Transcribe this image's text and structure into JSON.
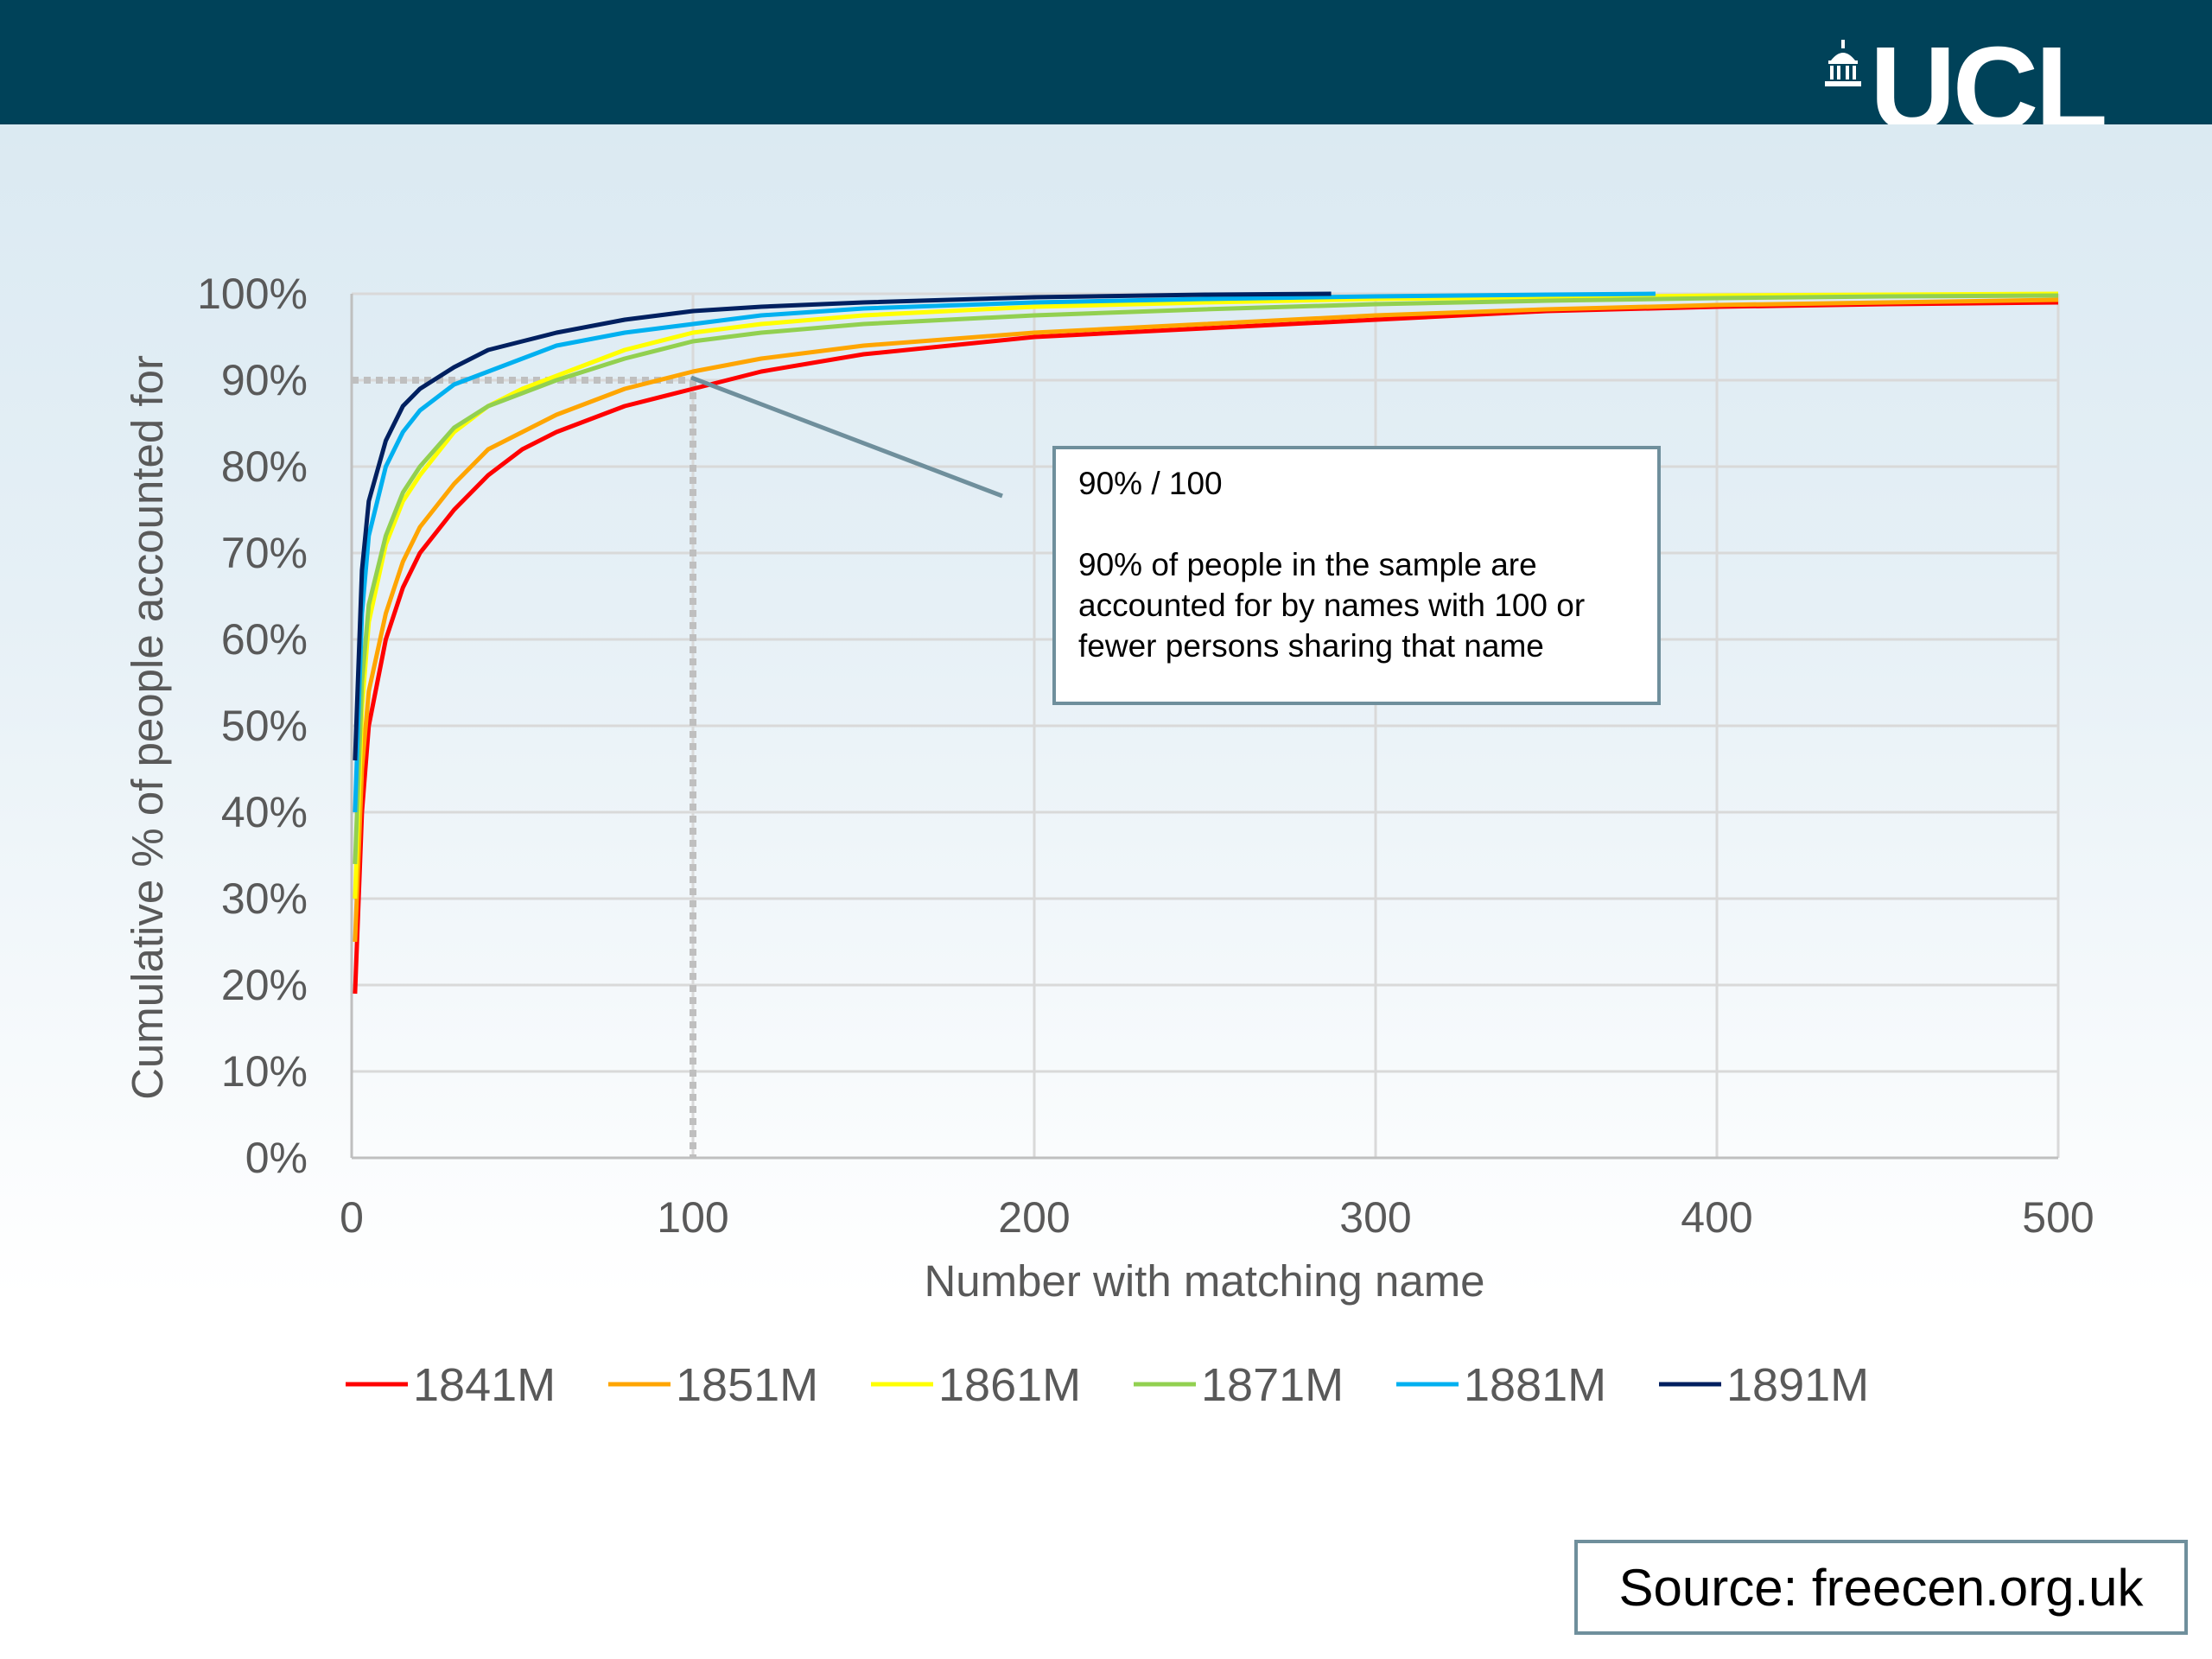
{
  "header": {
    "logo_text": "UCL",
    "background_color": "#004259"
  },
  "annotation": {
    "title": "90% / 100",
    "body": "90% of people in the sample are accounted for by names with 100 or fewer persons sharing that name"
  },
  "source": {
    "text": "Source: freecen.org.uk"
  },
  "chart_data": {
    "type": "line",
    "title": "",
    "xlabel": "Number with matching name",
    "ylabel": "Cumulative % of people accounted for",
    "xlim": [
      0,
      500
    ],
    "ylim": [
      0,
      1
    ],
    "x_ticks": [
      0,
      100,
      200,
      300,
      400,
      500
    ],
    "x_tick_labels": [
      "0",
      "100",
      "200",
      "300",
      "400",
      "500"
    ],
    "y_ticks": [
      0,
      0.1,
      0.2,
      0.3,
      0.4,
      0.5,
      0.6,
      0.7,
      0.8,
      0.9,
      1.0
    ],
    "y_tick_labels": [
      "0%",
      "10%",
      "20%",
      "30%",
      "40%",
      "50%",
      "60%",
      "70%",
      "80%",
      "90%",
      "100%"
    ],
    "grid": true,
    "legend_position": "bottom",
    "reference_lines": [
      {
        "x": 100,
        "y": 0.9,
        "style": "dotted"
      }
    ],
    "series": [
      {
        "name": "1841M",
        "color": "#ff0000",
        "x": [
          1,
          3,
          5,
          10,
          15,
          20,
          30,
          40,
          50,
          60,
          80,
          100,
          120,
          150,
          200,
          250,
          300,
          350,
          400,
          450,
          500
        ],
        "y": [
          0.19,
          0.4,
          0.5,
          0.6,
          0.66,
          0.7,
          0.75,
          0.79,
          0.82,
          0.84,
          0.87,
          0.89,
          0.91,
          0.93,
          0.95,
          0.96,
          0.97,
          0.98,
          0.985,
          0.988,
          0.99
        ]
      },
      {
        "name": "1851M",
        "color": "#ffa500",
        "x": [
          1,
          3,
          5,
          10,
          15,
          20,
          30,
          40,
          50,
          60,
          80,
          100,
          120,
          150,
          200,
          250,
          300,
          350,
          400,
          450,
          500
        ],
        "y": [
          0.25,
          0.45,
          0.54,
          0.63,
          0.69,
          0.73,
          0.78,
          0.82,
          0.84,
          0.86,
          0.89,
          0.91,
          0.925,
          0.94,
          0.955,
          0.965,
          0.975,
          0.982,
          0.987,
          0.99,
          0.993
        ]
      },
      {
        "name": "1861M",
        "color": "#ffff00",
        "x": [
          1,
          3,
          5,
          10,
          15,
          20,
          30,
          40,
          50,
          60,
          80,
          100,
          120,
          150,
          200,
          250,
          300,
          350,
          400,
          450,
          500
        ],
        "y": [
          0.3,
          0.52,
          0.62,
          0.71,
          0.76,
          0.79,
          0.84,
          0.87,
          0.89,
          0.905,
          0.935,
          0.955,
          0.965,
          0.975,
          0.985,
          0.99,
          0.994,
          0.996,
          0.998,
          0.999,
          1.0
        ]
      },
      {
        "name": "1871M",
        "color": "#92d050",
        "x": [
          1,
          3,
          5,
          10,
          15,
          20,
          30,
          40,
          50,
          60,
          80,
          100,
          120,
          150,
          200,
          250,
          300,
          350,
          400,
          450,
          500
        ],
        "y": [
          0.34,
          0.55,
          0.64,
          0.72,
          0.77,
          0.8,
          0.845,
          0.87,
          0.885,
          0.9,
          0.925,
          0.945,
          0.955,
          0.965,
          0.975,
          0.982,
          0.988,
          0.992,
          0.995,
          0.997,
          0.998
        ]
      },
      {
        "name": "1881M",
        "color": "#00b0f0",
        "x": [
          1,
          3,
          5,
          10,
          15,
          20,
          30,
          40,
          50,
          60,
          80,
          100,
          120,
          150,
          200,
          250,
          300,
          350,
          382
        ],
        "y": [
          0.4,
          0.63,
          0.72,
          0.8,
          0.84,
          0.865,
          0.895,
          0.91,
          0.925,
          0.94,
          0.955,
          0.965,
          0.975,
          0.983,
          0.99,
          0.994,
          0.997,
          0.999,
          1.0
        ]
      },
      {
        "name": "1891M",
        "color": "#002060",
        "x": [
          1,
          3,
          5,
          10,
          15,
          20,
          30,
          40,
          50,
          60,
          80,
          100,
          120,
          150,
          200,
          250,
          287
        ],
        "y": [
          0.46,
          0.68,
          0.76,
          0.83,
          0.87,
          0.89,
          0.915,
          0.935,
          0.945,
          0.955,
          0.97,
          0.98,
          0.985,
          0.99,
          0.996,
          0.999,
          1.0
        ]
      }
    ]
  }
}
